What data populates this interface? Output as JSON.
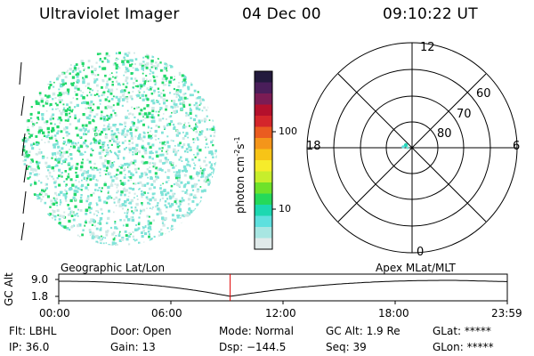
{
  "header": {
    "instrument": "Ultraviolet Imager",
    "date": "04 Dec 00",
    "time": "09:10:22 UT"
  },
  "colorbar": {
    "unit_label": "photon cm",
    "unit_sup1": "-2",
    "unit_mid": "s",
    "unit_sup2": "-1",
    "ticks": [
      "100",
      "10"
    ],
    "colors": [
      "#231a3d",
      "#4a1e5a",
      "#7b1c54",
      "#b4102c",
      "#d4262b",
      "#ea5c20",
      "#f4951a",
      "#f7c417",
      "#f6ec2b",
      "#c7ee2c",
      "#6ee22a",
      "#25d95a",
      "#1cd8b1",
      "#5ee0de",
      "#a8e6e2",
      "#e0eaea"
    ]
  },
  "polar": {
    "mlt_labels": [
      "12",
      "18",
      "6",
      "0"
    ],
    "lat_labels": [
      "60",
      "70",
      "80"
    ]
  },
  "timeline": {
    "left_label": "Geographic Lat/Lon",
    "right_label": "Apex  MLat/MLT",
    "y_axis_label": "GC Alt",
    "y_ticks": [
      "9.0",
      "1.8"
    ],
    "x_ticks": [
      "00:00",
      "06:00",
      "12:00",
      "18:00",
      "23:59"
    ],
    "current_time_fraction": 0.3822
  },
  "info": {
    "row1": [
      "Flt: LBHL",
      "Door: Open",
      "Mode: Normal",
      "GC Alt: 1.9 Re",
      "GLat: *****"
    ],
    "row2": [
      "IP: 36.0",
      "Gain: 13",
      "Dsp: −144.5",
      "Seq: 39",
      "GLon: *****"
    ]
  },
  "colors": {
    "current_time_marker": "#e00000",
    "aurora_green": "#22d86a",
    "aurora_cyan": "#7fe3d8",
    "aurora_pale": "#cfe9e6"
  }
}
